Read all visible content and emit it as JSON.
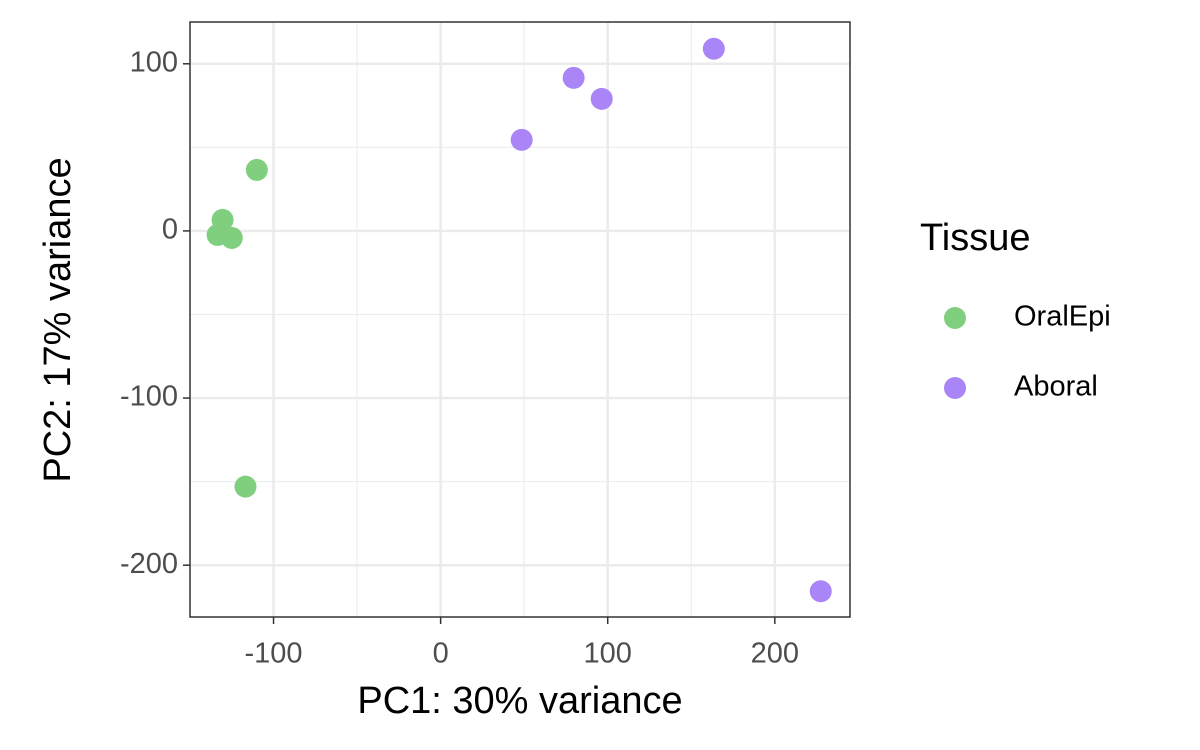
{
  "chart_data": {
    "type": "scatter",
    "xlabel": "PC1: 30% variance",
    "ylabel": "PC2: 17% variance",
    "xlim": [
      -150,
      245
    ],
    "ylim": [
      -231,
      125
    ],
    "xticks": [
      -100,
      0,
      100,
      200
    ],
    "yticks": [
      -200,
      -100,
      0,
      100
    ],
    "grid": true,
    "legend_title": "Tissue",
    "legend": "right",
    "series": [
      {
        "name": "OralEpi",
        "color": "#80cf7e",
        "x": [
          -110,
          -130.5,
          -133.5,
          -125,
          -116.8
        ],
        "values": [
          36.5,
          6.6,
          -2.4,
          -4.2,
          -153
        ]
      },
      {
        "name": "Aboral",
        "color": "#aa85f7",
        "x": [
          48.5,
          79.6,
          96.4,
          163.5,
          227.5
        ],
        "values": [
          54.5,
          91.6,
          79,
          109,
          -215.6
        ]
      }
    ]
  }
}
